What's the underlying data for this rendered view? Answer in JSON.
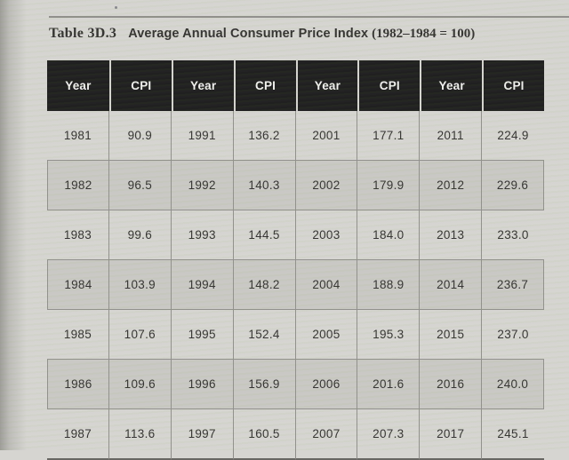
{
  "title": {
    "label": "Table 3D.3",
    "main": "Average Annual Consumer Price Index",
    "paren": "(1982–1984 = 100)"
  },
  "table": {
    "headers": [
      "Year",
      "CPI",
      "Year",
      "CPI",
      "Year",
      "CPI",
      "Year",
      "CPI"
    ],
    "rows": [
      [
        "1981",
        "90.9",
        "1991",
        "136.2",
        "2001",
        "177.1",
        "2011",
        "224.9"
      ],
      [
        "1982",
        "96.5",
        "1992",
        "140.3",
        "2002",
        "179.9",
        "2012",
        "229.6"
      ],
      [
        "1983",
        "99.6",
        "1993",
        "144.5",
        "2003",
        "184.0",
        "2013",
        "233.0"
      ],
      [
        "1984",
        "103.9",
        "1994",
        "148.2",
        "2004",
        "188.9",
        "2014",
        "236.7"
      ],
      [
        "1985",
        "107.6",
        "1995",
        "152.4",
        "2005",
        "195.3",
        "2015",
        "237.0"
      ],
      [
        "1986",
        "109.6",
        "1996",
        "156.9",
        "2006",
        "201.6",
        "2016",
        "240.0"
      ],
      [
        "1987",
        "113.6",
        "1997",
        "160.5",
        "2007",
        "207.3",
        "2017",
        "245.1"
      ]
    ]
  },
  "colors": {
    "page_bg": "#d6d5d1",
    "header_bg": "#161616",
    "header_text": "#f2f2f0",
    "row_shade": "#c9c8c4",
    "grid_border": "#8e8d89",
    "text": "#2c2b29",
    "rule": "#8d8c88"
  }
}
